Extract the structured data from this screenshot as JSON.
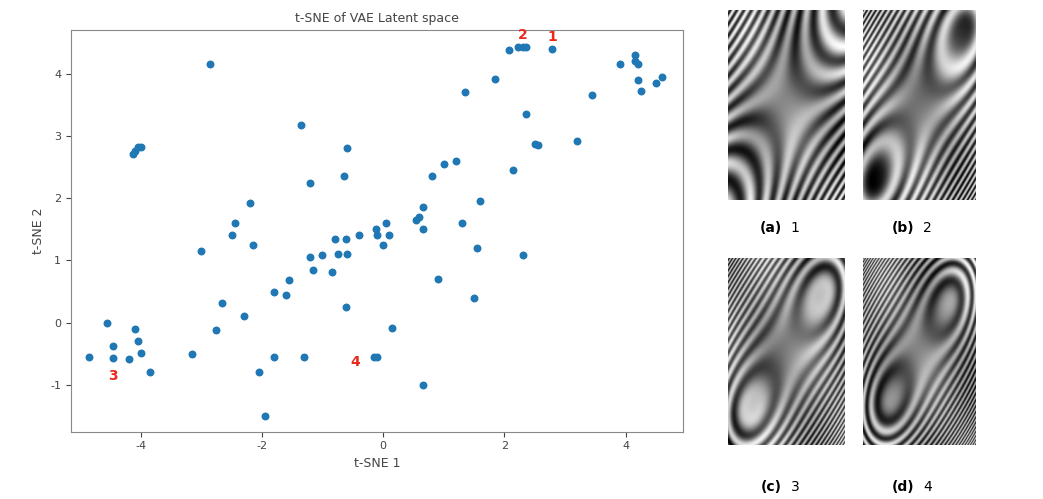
{
  "chart_data": {
    "type": "scatter",
    "title": "t-SNE of VAE Latent space",
    "x_label": "t-SNE 1",
    "y_label": "t-SNE 2",
    "color": "#1f77b4",
    "marker": "o",
    "x": [
      2.07,
      2.23,
      2.3,
      2.35,
      2.79,
      4.15,
      4.15,
      4.2,
      4.2,
      4.25,
      3.9,
      4.5,
      4.6,
      3.45,
      3.2,
      2.55,
      2.5,
      2.35,
      1.85,
      1.35,
      2.15,
      2.3,
      1.6,
      1.55,
      1.5,
      1.3,
      1.2,
      1.0,
      0.9,
      0.8,
      0.65,
      0.65,
      0.6,
      0.55,
      0.65,
      0.15,
      0.1,
      0.05,
      0.0,
      -0.1,
      -0.12,
      -0.15,
      -0.1,
      -0.4,
      -0.6,
      -0.62,
      -0.6,
      -0.65,
      -0.62,
      -0.75,
      -0.8,
      -0.85,
      -1.0,
      -1.15,
      -1.2,
      -1.2,
      -1.3,
      -1.35,
      -1.55,
      -1.6,
      -1.8,
      -1.8,
      -1.95,
      -2.05,
      -2.15,
      -2.2,
      -2.3,
      -2.45,
      -2.5,
      -2.65,
      -2.75,
      -2.85,
      -3.0,
      -3.15,
      -3.85,
      -4.0,
      -4.05,
      -4.1,
      -4.05,
      -4.0,
      -4.1,
      -4.12,
      -4.2,
      -4.45,
      -4.45,
      -4.55,
      -4.85
    ],
    "y": [
      4.37,
      4.42,
      4.42,
      4.42,
      4.39,
      4.3,
      4.2,
      4.15,
      3.9,
      3.72,
      4.15,
      3.85,
      3.95,
      3.65,
      2.92,
      2.85,
      2.87,
      3.35,
      3.92,
      3.7,
      2.45,
      1.08,
      1.95,
      1.2,
      0.4,
      1.6,
      2.6,
      2.55,
      0.7,
      2.35,
      1.85,
      1.5,
      1.7,
      1.65,
      -1.0,
      -0.08,
      1.4,
      1.6,
      1.25,
      1.4,
      1.5,
      -0.55,
      -0.55,
      1.4,
      1.1,
      1.35,
      2.8,
      2.35,
      0.25,
      1.1,
      1.35,
      0.82,
      1.08,
      0.85,
      1.05,
      2.25,
      -0.55,
      3.18,
      0.68,
      0.45,
      -0.55,
      0.5,
      -1.5,
      -0.8,
      1.25,
      1.92,
      0.1,
      1.6,
      1.4,
      0.32,
      -0.12,
      4.15,
      1.15,
      -0.5,
      -0.8,
      -0.48,
      -0.3,
      -0.1,
      2.82,
      2.82,
      2.75,
      2.7,
      -0.58,
      -0.38,
      -0.57,
      0.0,
      -0.55
    ],
    "annotations": [
      {
        "text": "1",
        "x": 2.79,
        "y": 4.39
      },
      {
        "text": "2",
        "x": 2.3,
        "y": 4.42
      },
      {
        "text": "3",
        "x": -4.45,
        "y": -0.57
      },
      {
        "text": "4",
        "x": -0.1,
        "y": -0.55
      }
    ],
    "annotation_color": "#e8291c",
    "xlim": [
      -5.15,
      4.95
    ],
    "ylim": [
      -1.75,
      4.7
    ],
    "xticks": [
      -4,
      -2,
      0,
      2,
      4
    ],
    "yticks": [
      -1,
      0,
      1,
      2,
      3,
      4
    ]
  },
  "panels": [
    {
      "label": "(a)",
      "caption": "1"
    },
    {
      "label": "(b)",
      "caption": "2"
    },
    {
      "label": "(c)",
      "caption": "3"
    },
    {
      "label": "(d)",
      "caption": "4"
    }
  ]
}
